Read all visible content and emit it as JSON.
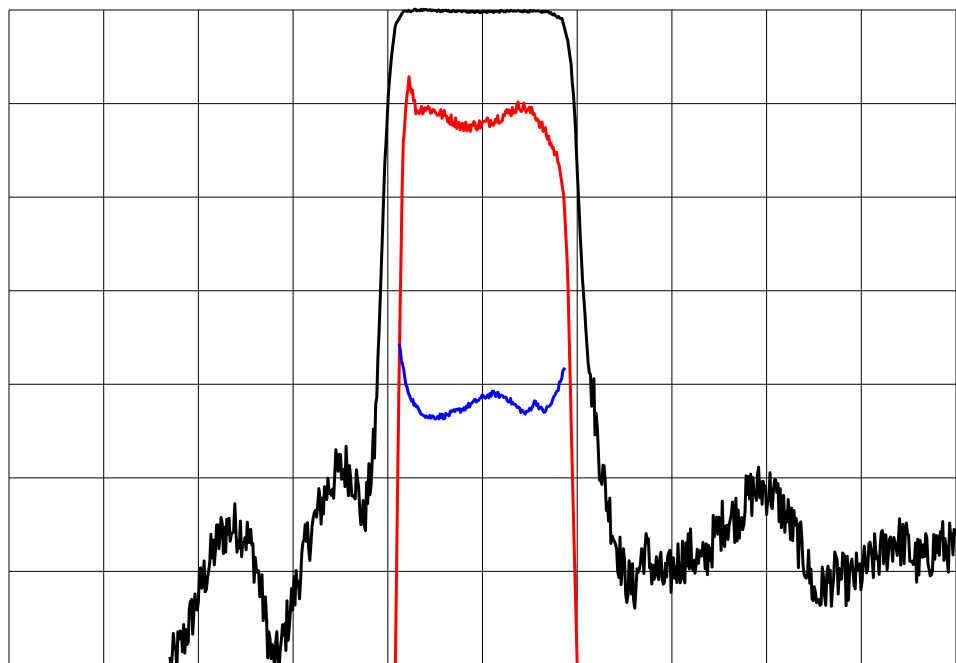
{
  "chart_data": {
    "type": "line",
    "grid": true,
    "grid_color": "#000000",
    "background": "#ffffff",
    "xlim": [
      0,
      10
    ],
    "ylim": [
      0,
      7
    ],
    "x_divisions": 10,
    "y_divisions": 7,
    "series": [
      {
        "color": "#000000",
        "style": "noisy",
        "points": [
          [
            1.7,
            0.0
          ],
          [
            1.82,
            0.2
          ],
          [
            1.92,
            0.48
          ],
          [
            2.02,
            0.82
          ],
          [
            2.12,
            1.1
          ],
          [
            2.22,
            1.36
          ],
          [
            2.3,
            1.45
          ],
          [
            2.4,
            1.48
          ],
          [
            2.5,
            1.4
          ],
          [
            2.6,
            1.12
          ],
          [
            2.7,
            0.55
          ],
          [
            2.78,
            0.05
          ],
          [
            2.86,
            0.1
          ],
          [
            2.96,
            0.55
          ],
          [
            3.06,
            0.95
          ],
          [
            3.16,
            1.35
          ],
          [
            3.26,
            1.62
          ],
          [
            3.36,
            1.88
          ],
          [
            3.46,
            2.05
          ],
          [
            3.56,
            2.12
          ],
          [
            3.66,
            1.98
          ],
          [
            3.74,
            1.52
          ],
          [
            3.8,
            1.88
          ],
          [
            3.86,
            2.35
          ],
          [
            3.92,
            3.9
          ],
          [
            3.97,
            5.4
          ],
          [
            4.02,
            6.35
          ],
          [
            4.08,
            6.84
          ],
          [
            4.16,
            6.98
          ],
          [
            4.3,
            7.0
          ],
          [
            4.6,
            6.99
          ],
          [
            5.0,
            6.98
          ],
          [
            5.4,
            6.99
          ],
          [
            5.7,
            6.98
          ],
          [
            5.84,
            6.9
          ],
          [
            5.92,
            6.6
          ],
          [
            5.98,
            5.8
          ],
          [
            6.04,
            4.4
          ],
          [
            6.12,
            3.2
          ],
          [
            6.18,
            2.8
          ],
          [
            6.22,
            2.35
          ],
          [
            6.3,
            1.85
          ],
          [
            6.4,
            1.35
          ],
          [
            6.5,
            0.95
          ],
          [
            6.6,
            0.8
          ],
          [
            6.7,
            1.25
          ],
          [
            6.82,
            1.0
          ],
          [
            6.94,
            0.9
          ],
          [
            7.06,
            1.1
          ],
          [
            7.2,
            1.2
          ],
          [
            7.32,
            1.05
          ],
          [
            7.44,
            1.35
          ],
          [
            7.56,
            1.55
          ],
          [
            7.7,
            1.6
          ],
          [
            7.82,
            1.82
          ],
          [
            7.94,
            1.9
          ],
          [
            8.06,
            1.85
          ],
          [
            8.18,
            1.65
          ],
          [
            8.3,
            1.4
          ],
          [
            8.42,
            1.1
          ],
          [
            8.52,
            0.7
          ],
          [
            8.62,
            0.85
          ],
          [
            8.74,
            0.95
          ],
          [
            8.86,
            0.9
          ],
          [
            8.98,
            0.95
          ],
          [
            9.1,
            1.1
          ],
          [
            9.22,
            1.2
          ],
          [
            9.34,
            1.35
          ],
          [
            9.46,
            1.3
          ],
          [
            9.58,
            1.1
          ],
          [
            9.7,
            1.15
          ],
          [
            9.82,
            1.3
          ],
          [
            9.94,
            1.25
          ],
          [
            10.0,
            1.2
          ]
        ]
      },
      {
        "color": "#ff0000",
        "style": "noisy-top",
        "points": [
          [
            4.08,
            0.0
          ],
          [
            4.12,
            3.2
          ],
          [
            4.16,
            5.6
          ],
          [
            4.22,
            6.3
          ],
          [
            4.3,
            5.92
          ],
          [
            4.4,
            5.96
          ],
          [
            4.6,
            5.87
          ],
          [
            4.8,
            5.75
          ],
          [
            5.0,
            5.78
          ],
          [
            5.2,
            5.86
          ],
          [
            5.4,
            5.98
          ],
          [
            5.56,
            5.88
          ],
          [
            5.7,
            5.62
          ],
          [
            5.8,
            5.4
          ],
          [
            5.86,
            5.0
          ],
          [
            5.9,
            4.2
          ],
          [
            5.95,
            2.0
          ],
          [
            6.0,
            0.0
          ]
        ]
      },
      {
        "color": "#0000ff",
        "style": "noisy",
        "points": [
          [
            4.12,
            3.42
          ],
          [
            4.2,
            2.95
          ],
          [
            4.3,
            2.75
          ],
          [
            4.42,
            2.65
          ],
          [
            4.6,
            2.66
          ],
          [
            4.8,
            2.74
          ],
          [
            5.0,
            2.86
          ],
          [
            5.12,
            2.9
          ],
          [
            5.25,
            2.86
          ],
          [
            5.36,
            2.76
          ],
          [
            5.46,
            2.68
          ],
          [
            5.56,
            2.82
          ],
          [
            5.64,
            2.7
          ],
          [
            5.72,
            2.78
          ],
          [
            5.8,
            2.96
          ],
          [
            5.88,
            3.22
          ]
        ]
      }
    ]
  }
}
